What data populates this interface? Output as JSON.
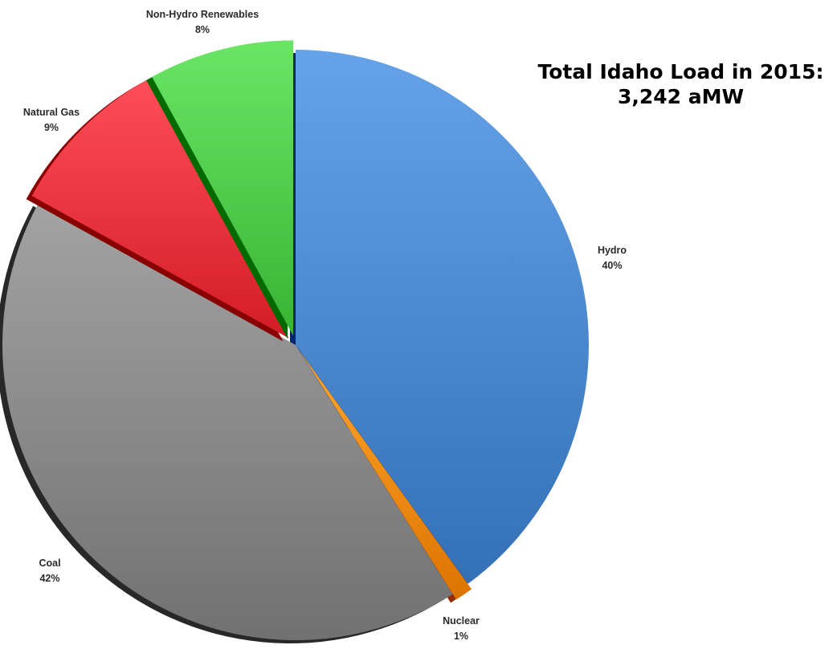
{
  "title": {
    "line1": "Total Idaho Load in 2015:",
    "line2": "3,242 aMW"
  },
  "chart_data": {
    "type": "pie",
    "style": "3d-exploded",
    "slices": [
      {
        "label": "Hydro",
        "value_label": "40%",
        "value": 40,
        "color": "#4a86cc"
      },
      {
        "label": "Nuclear",
        "value_label": "1%",
        "value": 1,
        "color": "#f28a0f"
      },
      {
        "label": "Coal",
        "value_label": "42%",
        "value": 42,
        "color": "#878787"
      },
      {
        "label": "Natural Gas",
        "value_label": "9%",
        "value": 9,
        "color": "#e8323c"
      },
      {
        "label": "Non-Hydro Renewables",
        "value_label": "8%",
        "value": 8,
        "color": "#4fc94a"
      }
    ]
  }
}
